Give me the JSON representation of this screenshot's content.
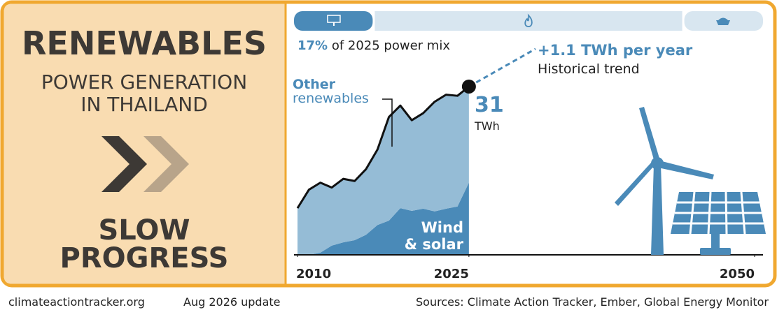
{
  "panel": {
    "title": "RENEWABLES",
    "subtitle_lines": [
      "POWER GENERATION",
      "IN THAILAND"
    ],
    "rating_lines": [
      "SLOW",
      "PROGRESS"
    ]
  },
  "power_mix": {
    "share_label": "17%",
    "share_text": "of 2025 power mix",
    "segments": [
      {
        "value": 17,
        "color": "#4a8ab8"
      },
      {
        "value": 66,
        "color": "#d8e6f0"
      },
      {
        "value": 17,
        "color": "#d8e6f0"
      }
    ]
  },
  "chart_data": {
    "type": "stacked-area",
    "x": [
      2010,
      2011,
      2012,
      2013,
      2014,
      2015,
      2016,
      2017,
      2018,
      2019,
      2020,
      2021,
      2022,
      2023,
      2024,
      2025
    ],
    "series": [
      {
        "name": "Wind & solar",
        "name_lines": [
          "Wind",
          "& solar"
        ],
        "color": "#4a8ab8",
        "values": [
          0,
          0,
          0.4,
          1.7,
          2.3,
          2.7,
          3.7,
          5.5,
          6.3,
          8.6,
          8.1,
          8.5,
          8.0,
          8.5,
          8.9,
          13.3
        ]
      },
      {
        "name": "Other renewables",
        "name_lines": [
          "Other",
          "renewables"
        ],
        "color": "#95bcd6",
        "values": [
          8.6,
          12.0,
          12.9,
          10.7,
          11.7,
          10.9,
          12.1,
          13.9,
          19.1,
          18.9,
          16.7,
          17.6,
          20.2,
          21.0,
          20.4,
          17.7
        ]
      }
    ],
    "line_color": "#111111",
    "xlim": [
      2010,
      2050
    ],
    "xticks": [
      2010,
      2025,
      2050
    ],
    "ylim": [
      0,
      40
    ],
    "total_label": "31",
    "unit": "TWh",
    "trend_label": "+1.1 TWh per year",
    "trend_sublabel": "Historical trend"
  },
  "footer": {
    "site": "climateactiontracker.org",
    "update": "Aug 2026 update",
    "sources": "Sources: Climate Action Tracker, Ember, Global Energy Monitor"
  }
}
